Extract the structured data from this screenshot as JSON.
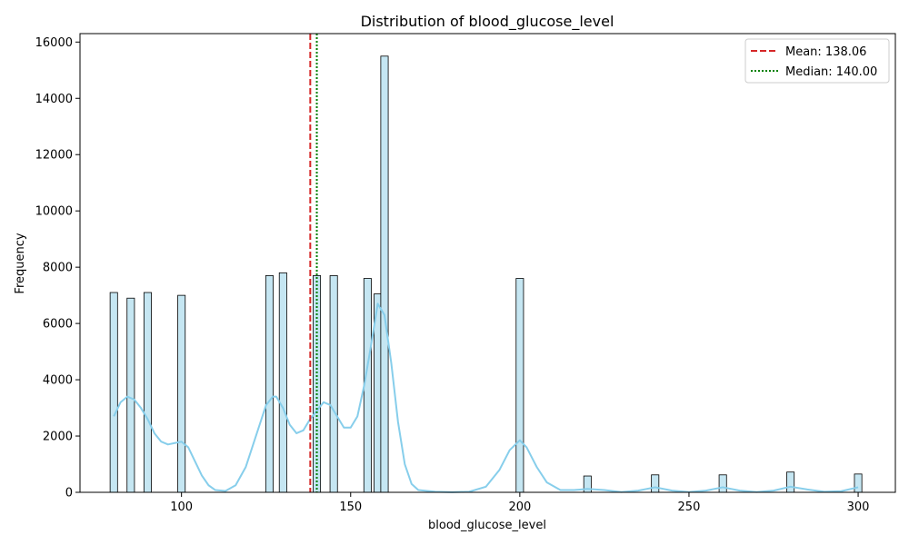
{
  "chart_data": {
    "type": "bar",
    "title": "Distribution of blood_glucose_level",
    "xlabel": "blood_glucose_level",
    "ylabel": "Frequency",
    "xlim": [
      70,
      311
    ],
    "ylim": [
      0,
      16300
    ],
    "xticks": [
      100,
      150,
      200,
      250,
      300
    ],
    "yticks": [
      0,
      2000,
      4000,
      6000,
      8000,
      10000,
      12000,
      14000,
      16000
    ],
    "bin_width": 2.2,
    "bins": [
      {
        "x": 80,
        "count": 7100
      },
      {
        "x": 85,
        "count": 6900
      },
      {
        "x": 90,
        "count": 7100
      },
      {
        "x": 100,
        "count": 7000
      },
      {
        "x": 126,
        "count": 7700
      },
      {
        "x": 130,
        "count": 7800
      },
      {
        "x": 140,
        "count": 7700
      },
      {
        "x": 145,
        "count": 7700
      },
      {
        "x": 155,
        "count": 7600
      },
      {
        "x": 158,
        "count": 7050
      },
      {
        "x": 160,
        "count": 15500
      },
      {
        "x": 200,
        "count": 7600
      },
      {
        "x": 220,
        "count": 580
      },
      {
        "x": 240,
        "count": 620
      },
      {
        "x": 260,
        "count": 620
      },
      {
        "x": 280,
        "count": 720
      },
      {
        "x": 300,
        "count": 650
      }
    ],
    "kde": {
      "x": [
        80,
        82,
        84,
        86,
        88,
        90,
        92,
        94,
        96,
        98,
        100,
        102,
        104,
        106,
        108,
        110,
        113,
        116,
        119,
        122,
        125,
        127,
        128,
        130,
        132,
        134,
        136,
        138,
        140,
        142,
        144,
        146,
        148,
        150,
        152,
        154,
        156,
        158,
        160,
        162,
        164,
        166,
        168,
        170,
        175,
        180,
        185,
        190,
        194,
        197,
        200,
        202,
        205,
        208,
        212,
        216,
        220,
        225,
        230,
        235,
        240,
        245,
        250,
        255,
        260,
        265,
        270,
        275,
        280,
        285,
        290,
        295,
        300
      ],
      "y": [
        2700,
        3200,
        3400,
        3300,
        3000,
        2600,
        2100,
        1800,
        1700,
        1750,
        1800,
        1600,
        1100,
        600,
        250,
        80,
        50,
        250,
        900,
        2000,
        3100,
        3400,
        3400,
        3000,
        2400,
        2100,
        2200,
        2600,
        2900,
        3200,
        3100,
        2700,
        2300,
        2300,
        2700,
        3800,
        5200,
        6700,
        6300,
        4600,
        2500,
        1000,
        300,
        80,
        20,
        5,
        20,
        200,
        800,
        1500,
        1850,
        1600,
        900,
        350,
        80,
        80,
        120,
        80,
        10,
        60,
        180,
        60,
        10,
        60,
        180,
        60,
        10,
        60,
        200,
        100,
        20,
        40,
        180
      ]
    },
    "lines": [
      {
        "name": "Mean: 138.06",
        "x": 138.06,
        "color": "#d62728",
        "style": "dashed"
      },
      {
        "name": "Median: 140.00",
        "x": 140.0,
        "color": "#008000",
        "style": "dotted"
      }
    ],
    "colors": {
      "bar_fill": "#c5e6f2",
      "bar_stroke": "#000000",
      "kde_line": "#87ceeb"
    },
    "legend_position": "top-right",
    "grid": false
  }
}
